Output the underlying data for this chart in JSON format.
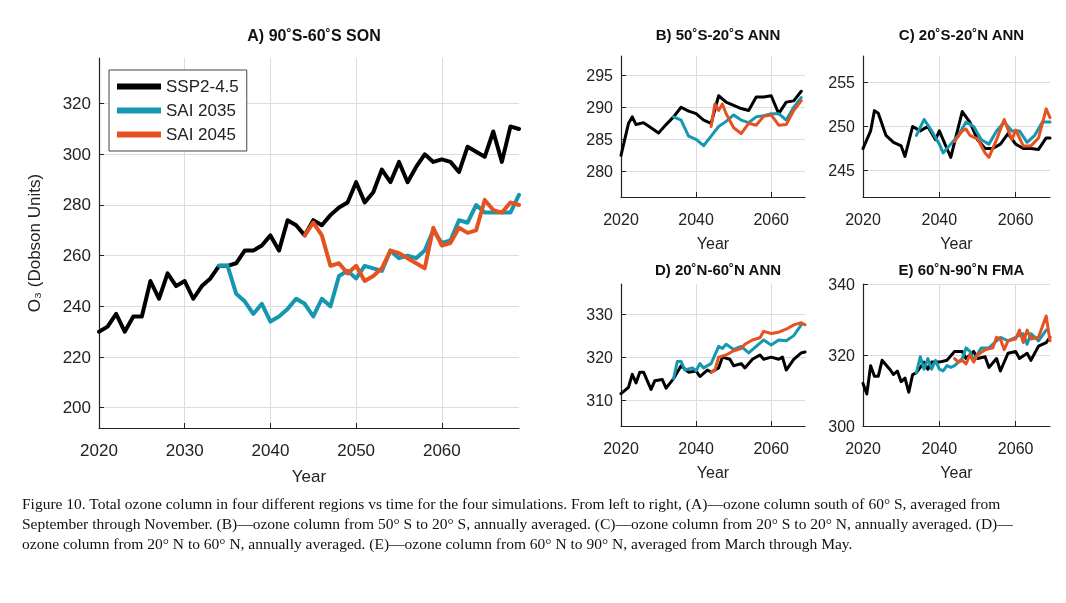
{
  "chart_data": [
    {
      "type": "line",
      "title": "A) 90˚S-60˚S SON",
      "xlabel": "Year",
      "ylabel": "O₃ (Dobson Units)",
      "xlim": [
        2020,
        2069
      ],
      "xticks": [
        2020,
        2030,
        2040,
        2050,
        2060
      ],
      "ylim": [
        192,
        338
      ],
      "yticks": [
        200,
        220,
        240,
        260,
        280,
        300,
        320
      ],
      "grid": true,
      "legend": "top left",
      "marker": "none",
      "line_style": "solid",
      "annotations": [
        "Figure 10. Total ozone column in four different regions vs time for the four simulations. From left to right, (A)—ozone column south of 60° S, averaged from September through November. (B)—ozone column from 50° S to 20° S, annually averaged. (C)—ozone column from 20° S to 20° N, annually averaged. (D)—ozone column from 20° N to 60° N, annually averaged. (E)—ozone column from 60° N to 90° N, averaged from March through May."
      ],
      "series": [
        {
          "name": "SSP2-4.5",
          "color": "#000000",
          "x": [
            2020,
            2021,
            2022,
            2023,
            2024,
            2025,
            2026,
            2027,
            2028,
            2029,
            2030,
            2031,
            2032,
            2033,
            2034,
            2035,
            2036,
            2037,
            2038,
            2039,
            2040,
            2041,
            2042,
            2043,
            2044,
            2045,
            2046,
            2047,
            2048,
            2049,
            2050,
            2051,
            2052,
            2053,
            2054,
            2055,
            2056,
            2057,
            2058,
            2059,
            2060,
            2061,
            2062,
            2063,
            2064,
            2065,
            2066,
            2067,
            2068,
            2069
          ],
          "values": [
            230,
            232,
            237,
            230,
            236,
            236,
            250,
            243,
            253,
            248,
            250,
            243,
            248,
            251,
            256,
            256,
            257,
            262,
            262,
            264,
            268,
            262,
            274,
            272,
            268,
            274,
            272,
            276,
            279,
            281,
            289,
            281,
            285,
            294,
            289,
            297,
            289,
            295,
            300,
            297,
            298,
            297,
            293,
            303,
            301,
            299,
            309,
            297,
            311,
            310
          ]
        },
        {
          "name": "SAI 2035",
          "color": "#1697b0",
          "x": [
            2034,
            2035,
            2036,
            2037,
            2038,
            2039,
            2040,
            2041,
            2042,
            2043,
            2044,
            2045,
            2046,
            2047,
            2048,
            2049,
            2050,
            2051,
            2052,
            2053,
            2054,
            2055,
            2056,
            2057,
            2058,
            2059,
            2060,
            2061,
            2062,
            2063,
            2064,
            2065,
            2066,
            2067,
            2068,
            2069
          ],
          "values": [
            256,
            256,
            245,
            242,
            237,
            241,
            234,
            236,
            239,
            243,
            241,
            236,
            243,
            240,
            252,
            254,
            251,
            256,
            255,
            254,
            262,
            259,
            260,
            259,
            262,
            270,
            265,
            266,
            274,
            273,
            280,
            277,
            277,
            277,
            277,
            284
          ]
        },
        {
          "name": "SAI 2045",
          "color": "#e6521f",
          "x": [
            2044,
            2045,
            2046,
            2047,
            2048,
            2049,
            2050,
            2051,
            2052,
            2053,
            2054,
            2055,
            2056,
            2057,
            2058,
            2059,
            2060,
            2061,
            2062,
            2063,
            2064,
            2065,
            2066,
            2067,
            2068,
            2069
          ],
          "values": [
            268,
            273,
            268,
            256,
            257,
            253,
            256,
            250,
            252,
            255,
            262,
            261,
            259,
            257,
            255,
            271,
            264,
            265,
            271,
            269,
            270,
            282,
            278,
            277,
            281,
            280
          ]
        }
      ]
    },
    {
      "type": "line",
      "title": "B) 50˚S-20˚S ANN",
      "xlabel": "Year",
      "xlim": [
        2020,
        2069
      ],
      "xticks": [
        2020,
        2040,
        2060
      ],
      "ylim": [
        276,
        298
      ],
      "yticks": [
        280,
        285,
        290,
        295
      ],
      "grid": true,
      "marker": "none",
      "line_style": "solid",
      "series": [
        {
          "color": "#000000",
          "x": [
            2020,
            2022,
            2023,
            2024,
            2026,
            2028,
            2030,
            2032,
            2034,
            2036,
            2038,
            2040,
            2042,
            2044,
            2046,
            2048,
            2050,
            2052,
            2054,
            2056,
            2058,
            2060,
            2062,
            2064,
            2066,
            2068
          ],
          "values": [
            282.5,
            287.5,
            288.5,
            287.3,
            287.6,
            286.8,
            286,
            287.3,
            288.5,
            290,
            289.4,
            289,
            288,
            287.5,
            291.8,
            290.8,
            290.3,
            289.8,
            289.5,
            291.6,
            291.6,
            291.8,
            289,
            290.8,
            291,
            292.5
          ]
        },
        {
          "color": "#1697b0",
          "x": [
            2034,
            2036,
            2038,
            2040,
            2042,
            2044,
            2046,
            2048,
            2050,
            2052,
            2054,
            2056,
            2058,
            2060,
            2062,
            2064,
            2066,
            2068
          ],
          "values": [
            288.5,
            288,
            285.5,
            285,
            284,
            285.5,
            287,
            287.8,
            288.8,
            288,
            287.6,
            288.5,
            288.7,
            289,
            289,
            288,
            290,
            291.5
          ]
        },
        {
          "color": "#e6521f",
          "x": [
            2044,
            2045,
            2046,
            2047,
            2048,
            2050,
            2052,
            2054,
            2056,
            2058,
            2060,
            2062,
            2064,
            2066,
            2068
          ],
          "values": [
            287,
            290.5,
            289.5,
            290.5,
            289,
            286.8,
            285.9,
            287.5,
            287.2,
            288.6,
            288.8,
            287.2,
            287.3,
            289.5,
            291
          ]
        }
      ]
    },
    {
      "type": "line",
      "title": "C) 20˚S-20˚N ANN",
      "xlabel": "Year",
      "xlim": [
        2020,
        2069
      ],
      "xticks": [
        2020,
        2040,
        2060
      ],
      "ylim": [
        242,
        258
      ],
      "yticks": [
        245,
        250,
        255
      ],
      "grid": true,
      "marker": "none",
      "line_style": "solid",
      "series": [
        {
          "color": "#000000",
          "x": [
            2020,
            2022,
            2023,
            2024,
            2026,
            2028,
            2030,
            2031,
            2033,
            2035,
            2037,
            2039,
            2040,
            2042,
            2043,
            2046,
            2048,
            2050,
            2052,
            2054,
            2056,
            2058,
            2060,
            2062,
            2064,
            2066,
            2068,
            2069
          ],
          "values": [
            247.5,
            249.5,
            251.8,
            251.5,
            249,
            248.2,
            247.8,
            246.6,
            250,
            249.5,
            250,
            248.5,
            249.5,
            247.5,
            246.5,
            251.7,
            250.5,
            248.5,
            247.5,
            247.5,
            248,
            249.2,
            248,
            247.5,
            247.5,
            247.4,
            248.7,
            248.7
          ]
        },
        {
          "color": "#1697b0",
          "x": [
            2034,
            2036,
            2038,
            2040,
            2041,
            2043,
            2045,
            2047,
            2049,
            2051,
            2053,
            2055,
            2057,
            2059,
            2061,
            2063,
            2065,
            2067,
            2069
          ],
          "values": [
            249,
            250.8,
            249.5,
            248,
            247,
            248,
            249,
            250.5,
            250,
            248.5,
            248,
            249.5,
            250.5,
            249.5,
            249.5,
            248.2,
            249,
            250.5,
            250.5
          ]
        },
        {
          "color": "#e6521f",
          "x": [
            2044,
            2046,
            2047,
            2048,
            2050,
            2052,
            2053,
            2055,
            2057,
            2059,
            2060,
            2062,
            2064,
            2066,
            2068,
            2069
          ],
          "values": [
            248.3,
            249.5,
            249.7,
            249,
            248.6,
            247,
            246.5,
            248.5,
            250.8,
            248.5,
            249.6,
            247.8,
            247.8,
            248.7,
            252,
            251
          ]
        }
      ]
    },
    {
      "type": "line",
      "title": "D) 20˚N-60˚N ANN",
      "xlabel": "Year",
      "xlim": [
        2020,
        2069
      ],
      "xticks": [
        2020,
        2040,
        2060
      ],
      "ylim": [
        304,
        337
      ],
      "yticks": [
        310,
        320,
        330
      ],
      "grid": true,
      "marker": "none",
      "line_style": "solid",
      "series": [
        {
          "color": "#000000",
          "x": [
            2020,
            2022,
            2023,
            2024,
            2025,
            2026,
            2028,
            2029,
            2031,
            2032,
            2034,
            2036,
            2038,
            2040,
            2041,
            2043,
            2044,
            2046,
            2047,
            2049,
            2050,
            2052,
            2053,
            2055,
            2057,
            2058,
            2060,
            2062,
            2063,
            2064,
            2066,
            2068,
            2069
          ],
          "values": [
            311.5,
            313,
            316,
            314,
            316.5,
            316.5,
            312.5,
            314.5,
            314.8,
            312.8,
            315,
            318,
            316.5,
            316.8,
            315.5,
            317,
            316.5,
            317.5,
            320,
            319.5,
            318,
            318.5,
            317.5,
            319.5,
            320.5,
            319.5,
            320,
            319.5,
            320,
            317,
            319.5,
            321,
            321.2
          ]
        },
        {
          "color": "#1697b0",
          "x": [
            2034,
            2035,
            2036,
            2037,
            2039,
            2040,
            2041,
            2042,
            2044,
            2046,
            2047,
            2048,
            2050,
            2052,
            2054,
            2056,
            2058,
            2060,
            2062,
            2064,
            2066,
            2068
          ],
          "values": [
            315,
            319,
            319,
            317,
            317.5,
            316.8,
            318.5,
            317.5,
            318.5,
            322.5,
            322,
            323,
            321.8,
            322.5,
            321,
            322.5,
            324,
            322.8,
            324,
            323.8,
            325,
            327.5
          ]
        },
        {
          "color": "#e6521f",
          "x": [
            2044,
            2045,
            2046,
            2048,
            2050,
            2052,
            2053,
            2055,
            2057,
            2058,
            2060,
            2062,
            2064,
            2066,
            2068,
            2069
          ],
          "values": [
            316.5,
            317,
            320,
            320.5,
            321.5,
            322,
            323,
            324,
            324.5,
            326,
            325.5,
            325.8,
            326.5,
            327.5,
            328,
            327.5
          ]
        }
      ]
    },
    {
      "type": "line",
      "title": "E) 60˚N-90˚N FMA",
      "xlabel": "Year",
      "xlim": [
        2020,
        2069
      ],
      "xticks": [
        2020,
        2040,
        2060
      ],
      "ylim": [
        300,
        340
      ],
      "yticks": [
        300,
        320,
        340
      ],
      "grid": true,
      "marker": "none",
      "line_style": "solid",
      "series": [
        {
          "color": "#000000",
          "x": [
            2020,
            2021,
            2022,
            2023,
            2024,
            2025,
            2027,
            2028,
            2029,
            2030,
            2031,
            2032,
            2033,
            2034,
            2036,
            2037,
            2038,
            2040,
            2042,
            2044,
            2046,
            2047,
            2049,
            2050,
            2052,
            2053,
            2055,
            2056,
            2058,
            2060,
            2061,
            2063,
            2064,
            2066,
            2067,
            2068,
            2069
          ],
          "values": [
            312,
            309,
            317,
            314,
            314,
            318.5,
            316,
            314.5,
            315.5,
            312.5,
            313.5,
            309.5,
            314.5,
            315,
            318,
            316,
            318,
            318,
            318.5,
            321,
            321,
            319,
            321,
            319,
            319.5,
            316.5,
            319,
            315.5,
            320.5,
            321,
            319,
            320.5,
            318.5,
            322.5,
            323,
            323.5,
            325
          ]
        },
        {
          "color": "#1697b0",
          "x": [
            2034,
            2035,
            2036,
            2037,
            2038,
            2039,
            2040,
            2041,
            2042,
            2043,
            2044,
            2046,
            2047,
            2048,
            2049,
            2051,
            2053,
            2055,
            2056,
            2058,
            2060,
            2062,
            2063,
            2064,
            2066,
            2068
          ],
          "values": [
            315,
            319.5,
            316,
            319,
            316,
            318.5,
            316,
            315.5,
            317,
            316.5,
            317,
            319,
            322,
            321,
            318.5,
            322,
            322,
            324,
            325,
            324,
            325,
            326,
            323,
            326,
            324,
            327
          ]
        },
        {
          "color": "#e6521f",
          "x": [
            2044,
            2045,
            2046,
            2047,
            2048,
            2049,
            2050,
            2052,
            2054,
            2055,
            2056,
            2057,
            2058,
            2060,
            2061,
            2062,
            2063,
            2064,
            2066,
            2067,
            2068,
            2069
          ],
          "values": [
            319,
            318,
            318.5,
            317.5,
            320,
            318,
            320,
            321.5,
            322,
            325,
            324.5,
            321.5,
            324,
            324.5,
            327,
            323.5,
            327,
            324.5,
            325,
            328,
            331,
            324
          ]
        }
      ]
    }
  ]
}
